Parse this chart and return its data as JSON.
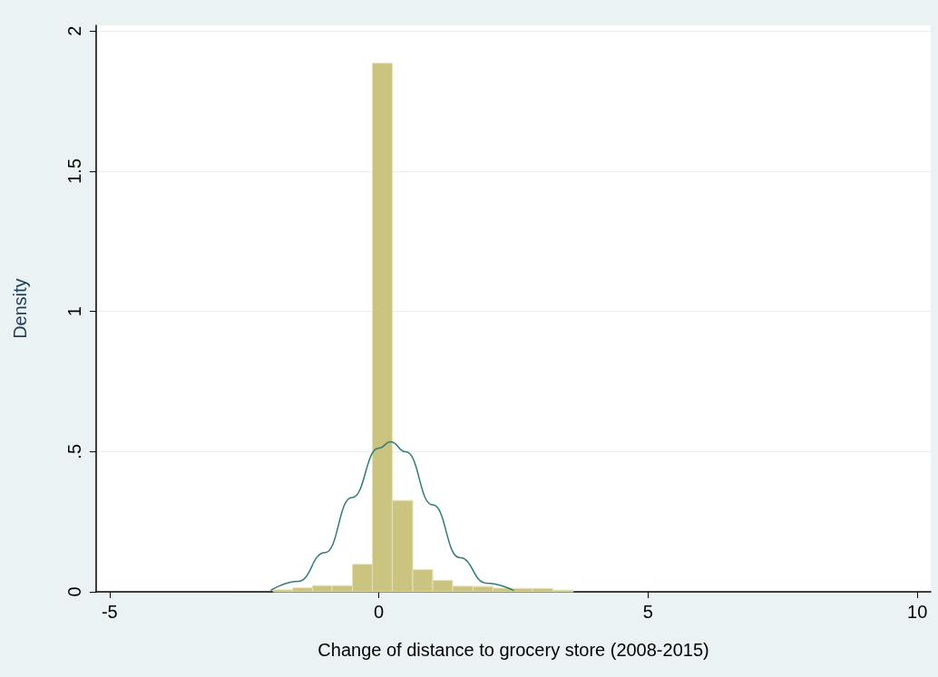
{
  "chart_data": {
    "type": "histogram",
    "xlabel": "Change of distance to grocery store (2008-2015)",
    "ylabel": "Density",
    "series": [
      {
        "color": "#cbc480",
        "bins": [
          -1.96,
          -1.6,
          -1.23,
          -0.87,
          -0.49,
          -0.12,
          0.25,
          0.63,
          1.0,
          1.37,
          1.75,
          2.12,
          2.49,
          2.85,
          3.23,
          3.61
        ],
        "values": [
          0.007,
          0.014,
          0.022,
          0.022,
          0.098,
          1.885,
          0.326,
          0.079,
          0.041,
          0.02,
          0.019,
          0.013,
          0.012,
          0.012,
          0.006
        ]
      },
      {
        "type": "line",
        "color": "#2e7b78",
        "x": [
          -2,
          -1.5,
          -1,
          -0.5,
          0,
          0.22,
          0.5,
          1,
          1.5,
          2,
          2.5
        ],
        "values": [
          0.006,
          0.037,
          0.14,
          0.336,
          0.512,
          0.535,
          0.499,
          0.31,
          0.122,
          0.031,
          0.005
        ]
      }
    ],
    "xlim": [
      -5.25,
      10.25
    ],
    "xticks": [
      -5,
      0,
      5,
      10
    ],
    "ylim": [
      0,
      2.02
    ],
    "yticks": [
      0,
      {
        "value": 0.5,
        "label": ".5"
      },
      1,
      {
        "value": 1.5,
        "label": "1.5"
      },
      2
    ],
    "grid": "y",
    "marker": "none",
    "line_style": "solid"
  }
}
